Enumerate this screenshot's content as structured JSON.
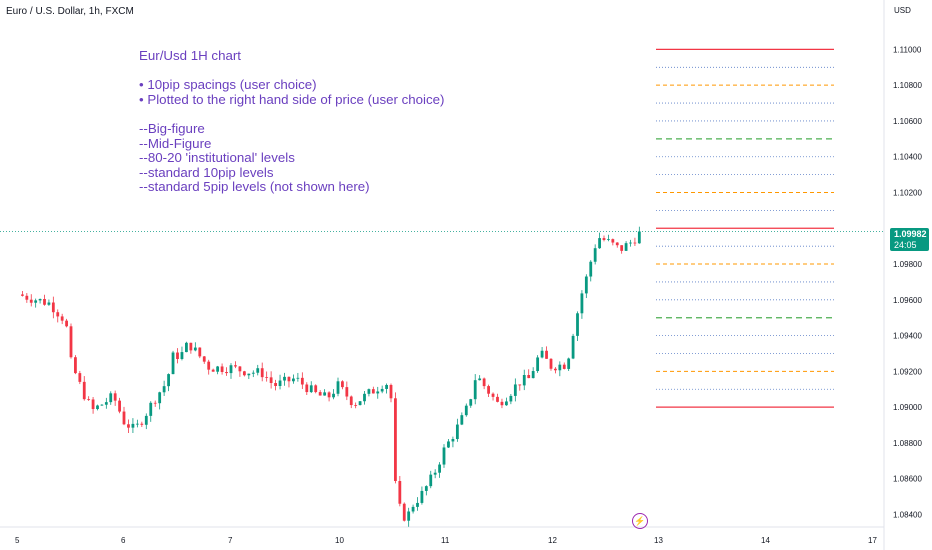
{
  "header": {
    "symbol_title": "Euro / U.S. Dollar, 1h, FXCM",
    "currency": "USD"
  },
  "annotation": {
    "text": "Eur/Usd 1H chart\n\n• 10pip spacings (user choice)\n• Plotted to the right hand side of price (user choice)\n\n--Big-figure\n--Mid-Figure\n--80-20 'institutional' levels\n--standard 10pip levels\n--standard 5pip levels (not shown here)"
  },
  "last_price": {
    "value": "1.09982",
    "countdown": "24:05"
  },
  "colors": {
    "up": "#089981",
    "down": "#f23645",
    "big_figure": "#f23645",
    "mid_figure": "#4caf50",
    "institutional": "#ff9800",
    "standard": "#5b7fc7",
    "annotation_text": "#6a3fbf",
    "alert": "#9c27b0"
  },
  "icons": {
    "alert": "lightning-alert-icon"
  },
  "chart_data": {
    "type": "candlestick",
    "x_axis": {
      "ticks": [
        "5",
        "6",
        "7",
        "10",
        "11",
        "12",
        "13",
        "14",
        "17"
      ]
    },
    "y_axis": {
      "ylim": [
        1.0833,
        1.1117
      ],
      "ticks": [
        "1.11000",
        "1.10800",
        "1.10600",
        "1.10400",
        "1.10200",
        "1.09800",
        "1.09600",
        "1.09400",
        "1.09200",
        "1.09000",
        "1.08800",
        "1.08600",
        "1.08400"
      ]
    },
    "current_price": 1.09982,
    "levels": [
      {
        "price": 1.11,
        "kind": "big_figure"
      },
      {
        "price": 1.109,
        "kind": "standard"
      },
      {
        "price": 1.108,
        "kind": "institutional"
      },
      {
        "price": 1.107,
        "kind": "standard"
      },
      {
        "price": 1.106,
        "kind": "standard"
      },
      {
        "price": 1.105,
        "kind": "mid_figure"
      },
      {
        "price": 1.104,
        "kind": "standard"
      },
      {
        "price": 1.103,
        "kind": "standard"
      },
      {
        "price": 1.102,
        "kind": "institutional"
      },
      {
        "price": 1.101,
        "kind": "standard"
      },
      {
        "price": 1.1,
        "kind": "big_figure"
      },
      {
        "price": 1.099,
        "kind": "standard"
      },
      {
        "price": 1.098,
        "kind": "institutional"
      },
      {
        "price": 1.097,
        "kind": "standard"
      },
      {
        "price": 1.096,
        "kind": "standard"
      },
      {
        "price": 1.095,
        "kind": "mid_figure"
      },
      {
        "price": 1.094,
        "kind": "standard"
      },
      {
        "price": 1.093,
        "kind": "standard"
      },
      {
        "price": 1.092,
        "kind": "institutional"
      },
      {
        "price": 1.091,
        "kind": "standard"
      },
      {
        "price": 1.09,
        "kind": "big_figure"
      }
    ],
    "close_path": [
      [
        5.0,
        1.0963
      ],
      [
        5.3,
        1.0958
      ],
      [
        5.45,
        1.0948
      ],
      [
        5.5,
        1.0925
      ],
      [
        5.6,
        1.091
      ],
      [
        5.7,
        1.0898
      ],
      [
        5.9,
        1.0906
      ],
      [
        6.0,
        1.0892
      ],
      [
        6.1,
        1.0887
      ],
      [
        6.2,
        1.0896
      ],
      [
        6.3,
        1.0906
      ],
      [
        6.4,
        1.0914
      ],
      [
        6.45,
        1.0928
      ],
      [
        6.55,
        1.093
      ],
      [
        6.6,
        1.0936
      ],
      [
        6.8,
        1.0922
      ],
      [
        7.0,
        1.0922
      ],
      [
        7.15,
        1.092
      ],
      [
        7.3,
        1.0919
      ],
      [
        7.4,
        1.0912
      ],
      [
        7.6,
        1.0916
      ],
      [
        7.8,
        1.0907
      ],
      [
        7.9,
        1.0905
      ],
      [
        8.0,
        1.0912
      ],
      [
        8.15,
        1.0902
      ],
      [
        8.25,
        1.0906
      ],
      [
        8.4,
        1.0912
      ],
      [
        8.45,
        1.0915
      ],
      [
        8.5,
        1.0905
      ],
      [
        8.52,
        1.0873
      ],
      [
        8.55,
        1.085
      ],
      [
        8.6,
        1.084
      ],
      [
        8.65,
        1.0838
      ],
      [
        8.7,
        1.0845
      ],
      [
        8.8,
        1.0852
      ],
      [
        8.9,
        1.0862
      ],
      [
        9.0,
        1.0876
      ],
      [
        9.1,
        1.0886
      ],
      [
        9.2,
        1.0897
      ],
      [
        9.25,
        1.0906
      ],
      [
        9.3,
        1.0918
      ],
      [
        9.4,
        1.091
      ],
      [
        9.5,
        1.0902
      ],
      [
        9.6,
        1.0907
      ],
      [
        9.7,
        1.0914
      ],
      [
        9.8,
        1.0916
      ],
      [
        9.85,
        1.0924
      ],
      [
        9.9,
        1.093
      ],
      [
        10.0,
        1.0923
      ],
      [
        10.15,
        1.0924
      ],
      [
        10.2,
        1.094
      ],
      [
        10.3,
        1.0966
      ],
      [
        10.35,
        1.0975
      ],
      [
        10.4,
        1.0988
      ],
      [
        10.45,
        1.0995
      ],
      [
        10.55,
        1.0992
      ],
      [
        10.65,
        1.0988
      ],
      [
        10.75,
        1.0992
      ],
      [
        10.85,
        1.0998
      ]
    ]
  }
}
